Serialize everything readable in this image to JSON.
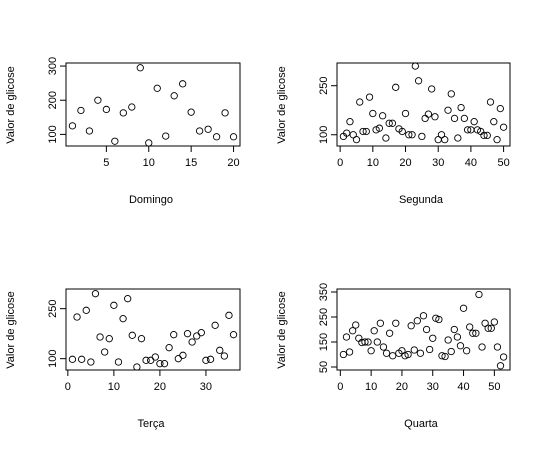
{
  "ylabel": "Valor de glicose",
  "chart_data": [
    {
      "type": "scatter",
      "xlabel": "Domingo",
      "ylabel": "Valor de glicose",
      "xlim": [
        1,
        20
      ],
      "ylim": [
        75,
        300
      ],
      "xticks": [
        5,
        10,
        15,
        20
      ],
      "yticks": [
        100,
        200,
        300
      ],
      "points": [
        {
          "x": 1,
          "y": 125
        },
        {
          "x": 2,
          "y": 170
        },
        {
          "x": 3,
          "y": 110
        },
        {
          "x": 4,
          "y": 200
        },
        {
          "x": 5,
          "y": 173
        },
        {
          "x": 6,
          "y": 80
        },
        {
          "x": 7,
          "y": 163
        },
        {
          "x": 8,
          "y": 180
        },
        {
          "x": 9,
          "y": 295
        },
        {
          "x": 10,
          "y": 75
        },
        {
          "x": 11,
          "y": 235
        },
        {
          "x": 12,
          "y": 95
        },
        {
          "x": 13,
          "y": 213
        },
        {
          "x": 14,
          "y": 248
        },
        {
          "x": 15,
          "y": 165
        },
        {
          "x": 16,
          "y": 110
        },
        {
          "x": 17,
          "y": 115
        },
        {
          "x": 18,
          "y": 93
        },
        {
          "x": 19,
          "y": 163
        },
        {
          "x": 20,
          "y": 93
        }
      ]
    },
    {
      "type": "scatter",
      "xlabel": "Segunda",
      "ylabel": "Valor de glicose",
      "xlim": [
        1,
        50
      ],
      "ylim": [
        75,
        310
      ],
      "xticks": [
        0,
        10,
        20,
        30,
        40,
        50
      ],
      "yticks": [
        100,
        250
      ],
      "points": [
        {
          "x": 1,
          "y": 95
        },
        {
          "x": 2,
          "y": 105
        },
        {
          "x": 3,
          "y": 140
        },
        {
          "x": 4,
          "y": 100
        },
        {
          "x": 5,
          "y": 85
        },
        {
          "x": 6,
          "y": 200
        },
        {
          "x": 7,
          "y": 110
        },
        {
          "x": 8,
          "y": 110
        },
        {
          "x": 9,
          "y": 215
        },
        {
          "x": 10,
          "y": 165
        },
        {
          "x": 11,
          "y": 115
        },
        {
          "x": 12,
          "y": 120
        },
        {
          "x": 13,
          "y": 158
        },
        {
          "x": 14,
          "y": 90
        },
        {
          "x": 15,
          "y": 135
        },
        {
          "x": 16,
          "y": 135
        },
        {
          "x": 17,
          "y": 245
        },
        {
          "x": 18,
          "y": 118
        },
        {
          "x": 19,
          "y": 110
        },
        {
          "x": 20,
          "y": 165
        },
        {
          "x": 21,
          "y": 100
        },
        {
          "x": 22,
          "y": 100
        },
        {
          "x": 23,
          "y": 310
        },
        {
          "x": 24,
          "y": 265
        },
        {
          "x": 25,
          "y": 95
        },
        {
          "x": 26,
          "y": 150
        },
        {
          "x": 27,
          "y": 163
        },
        {
          "x": 28,
          "y": 240
        },
        {
          "x": 29,
          "y": 155
        },
        {
          "x": 30,
          "y": 85
        },
        {
          "x": 31,
          "y": 100
        },
        {
          "x": 32,
          "y": 85
        },
        {
          "x": 33,
          "y": 175
        },
        {
          "x": 34,
          "y": 225
        },
        {
          "x": 35,
          "y": 150
        },
        {
          "x": 36,
          "y": 90
        },
        {
          "x": 37,
          "y": 183
        },
        {
          "x": 38,
          "y": 150
        },
        {
          "x": 39,
          "y": 115
        },
        {
          "x": 40,
          "y": 115
        },
        {
          "x": 41,
          "y": 140
        },
        {
          "x": 42,
          "y": 115
        },
        {
          "x": 43,
          "y": 110
        },
        {
          "x": 44,
          "y": 98
        },
        {
          "x": 45,
          "y": 98
        },
        {
          "x": 46,
          "y": 200
        },
        {
          "x": 47,
          "y": 140
        },
        {
          "x": 48,
          "y": 85
        },
        {
          "x": 49,
          "y": 180
        },
        {
          "x": 50,
          "y": 123
        }
      ]
    },
    {
      "type": "scatter",
      "xlabel": "Terça",
      "ylabel": "Valor de glicose",
      "xlim": [
        1,
        36
      ],
      "ylim": [
        75,
        300
      ],
      "xticks": [
        0,
        10,
        20,
        30
      ],
      "yticks": [
        100,
        250
      ],
      "points": [
        {
          "x": 1,
          "y": 98
        },
        {
          "x": 2,
          "y": 225
        },
        {
          "x": 3,
          "y": 98
        },
        {
          "x": 4,
          "y": 245
        },
        {
          "x": 5,
          "y": 90
        },
        {
          "x": 6,
          "y": 295
        },
        {
          "x": 7,
          "y": 165
        },
        {
          "x": 8,
          "y": 120
        },
        {
          "x": 9,
          "y": 160
        },
        {
          "x": 10,
          "y": 260
        },
        {
          "x": 11,
          "y": 90
        },
        {
          "x": 12,
          "y": 220
        },
        {
          "x": 13,
          "y": 280
        },
        {
          "x": 14,
          "y": 170
        },
        {
          "x": 15,
          "y": 75
        },
        {
          "x": 16,
          "y": 160
        },
        {
          "x": 17,
          "y": 95
        },
        {
          "x": 18,
          "y": 95
        },
        {
          "x": 19,
          "y": 105
        },
        {
          "x": 20,
          "y": 85
        },
        {
          "x": 21,
          "y": 85
        },
        {
          "x": 22,
          "y": 133
        },
        {
          "x": 23,
          "y": 172
        },
        {
          "x": 24,
          "y": 100
        },
        {
          "x": 25,
          "y": 110
        },
        {
          "x": 26,
          "y": 175
        },
        {
          "x": 27,
          "y": 150
        },
        {
          "x": 28,
          "y": 168
        },
        {
          "x": 29,
          "y": 178
        },
        {
          "x": 30,
          "y": 95
        },
        {
          "x": 31,
          "y": 98
        },
        {
          "x": 32,
          "y": 200
        },
        {
          "x": 33,
          "y": 125
        },
        {
          "x": 34,
          "y": 108
        },
        {
          "x": 35,
          "y": 230
        },
        {
          "x": 36,
          "y": 172
        }
      ]
    },
    {
      "type": "scatter",
      "xlabel": "Quarta",
      "ylabel": "Valor de glicose",
      "xlim": [
        1,
        53
      ],
      "ylim": [
        50,
        350
      ],
      "xticks": [
        0,
        10,
        20,
        30,
        40,
        50
      ],
      "yticks": [
        50,
        150,
        250,
        350
      ],
      "points": [
        {
          "x": 1,
          "y": 100
        },
        {
          "x": 2,
          "y": 170
        },
        {
          "x": 3,
          "y": 110
        },
        {
          "x": 4,
          "y": 195
        },
        {
          "x": 5,
          "y": 218
        },
        {
          "x": 6,
          "y": 165
        },
        {
          "x": 7,
          "y": 148
        },
        {
          "x": 8,
          "y": 150
        },
        {
          "x": 9,
          "y": 150
        },
        {
          "x": 10,
          "y": 115
        },
        {
          "x": 11,
          "y": 195
        },
        {
          "x": 12,
          "y": 150
        },
        {
          "x": 13,
          "y": 225
        },
        {
          "x": 14,
          "y": 130
        },
        {
          "x": 15,
          "y": 105
        },
        {
          "x": 16,
          "y": 185
        },
        {
          "x": 17,
          "y": 95
        },
        {
          "x": 18,
          "y": 225
        },
        {
          "x": 19,
          "y": 105
        },
        {
          "x": 20,
          "y": 115
        },
        {
          "x": 21,
          "y": 95
        },
        {
          "x": 22,
          "y": 100
        },
        {
          "x": 23,
          "y": 215
        },
        {
          "x": 24,
          "y": 118
        },
        {
          "x": 25,
          "y": 235
        },
        {
          "x": 26,
          "y": 105
        },
        {
          "x": 27,
          "y": 255
        },
        {
          "x": 28,
          "y": 200
        },
        {
          "x": 29,
          "y": 120
        },
        {
          "x": 30,
          "y": 165
        },
        {
          "x": 31,
          "y": 245
        },
        {
          "x": 32,
          "y": 240
        },
        {
          "x": 33,
          "y": 95
        },
        {
          "x": 34,
          "y": 92
        },
        {
          "x": 35,
          "y": 158
        },
        {
          "x": 36,
          "y": 112
        },
        {
          "x": 37,
          "y": 200
        },
        {
          "x": 38,
          "y": 170
        },
        {
          "x": 39,
          "y": 135
        },
        {
          "x": 40,
          "y": 285
        },
        {
          "x": 41,
          "y": 115
        },
        {
          "x": 42,
          "y": 210
        },
        {
          "x": 43,
          "y": 185
        },
        {
          "x": 44,
          "y": 185
        },
        {
          "x": 45,
          "y": 340
        },
        {
          "x": 46,
          "y": 130
        },
        {
          "x": 47,
          "y": 225
        },
        {
          "x": 48,
          "y": 205
        },
        {
          "x": 49,
          "y": 205
        },
        {
          "x": 50,
          "y": 230
        },
        {
          "x": 51,
          "y": 130
        },
        {
          "x": 52,
          "y": 55
        },
        {
          "x": 53,
          "y": 90
        }
      ]
    }
  ]
}
